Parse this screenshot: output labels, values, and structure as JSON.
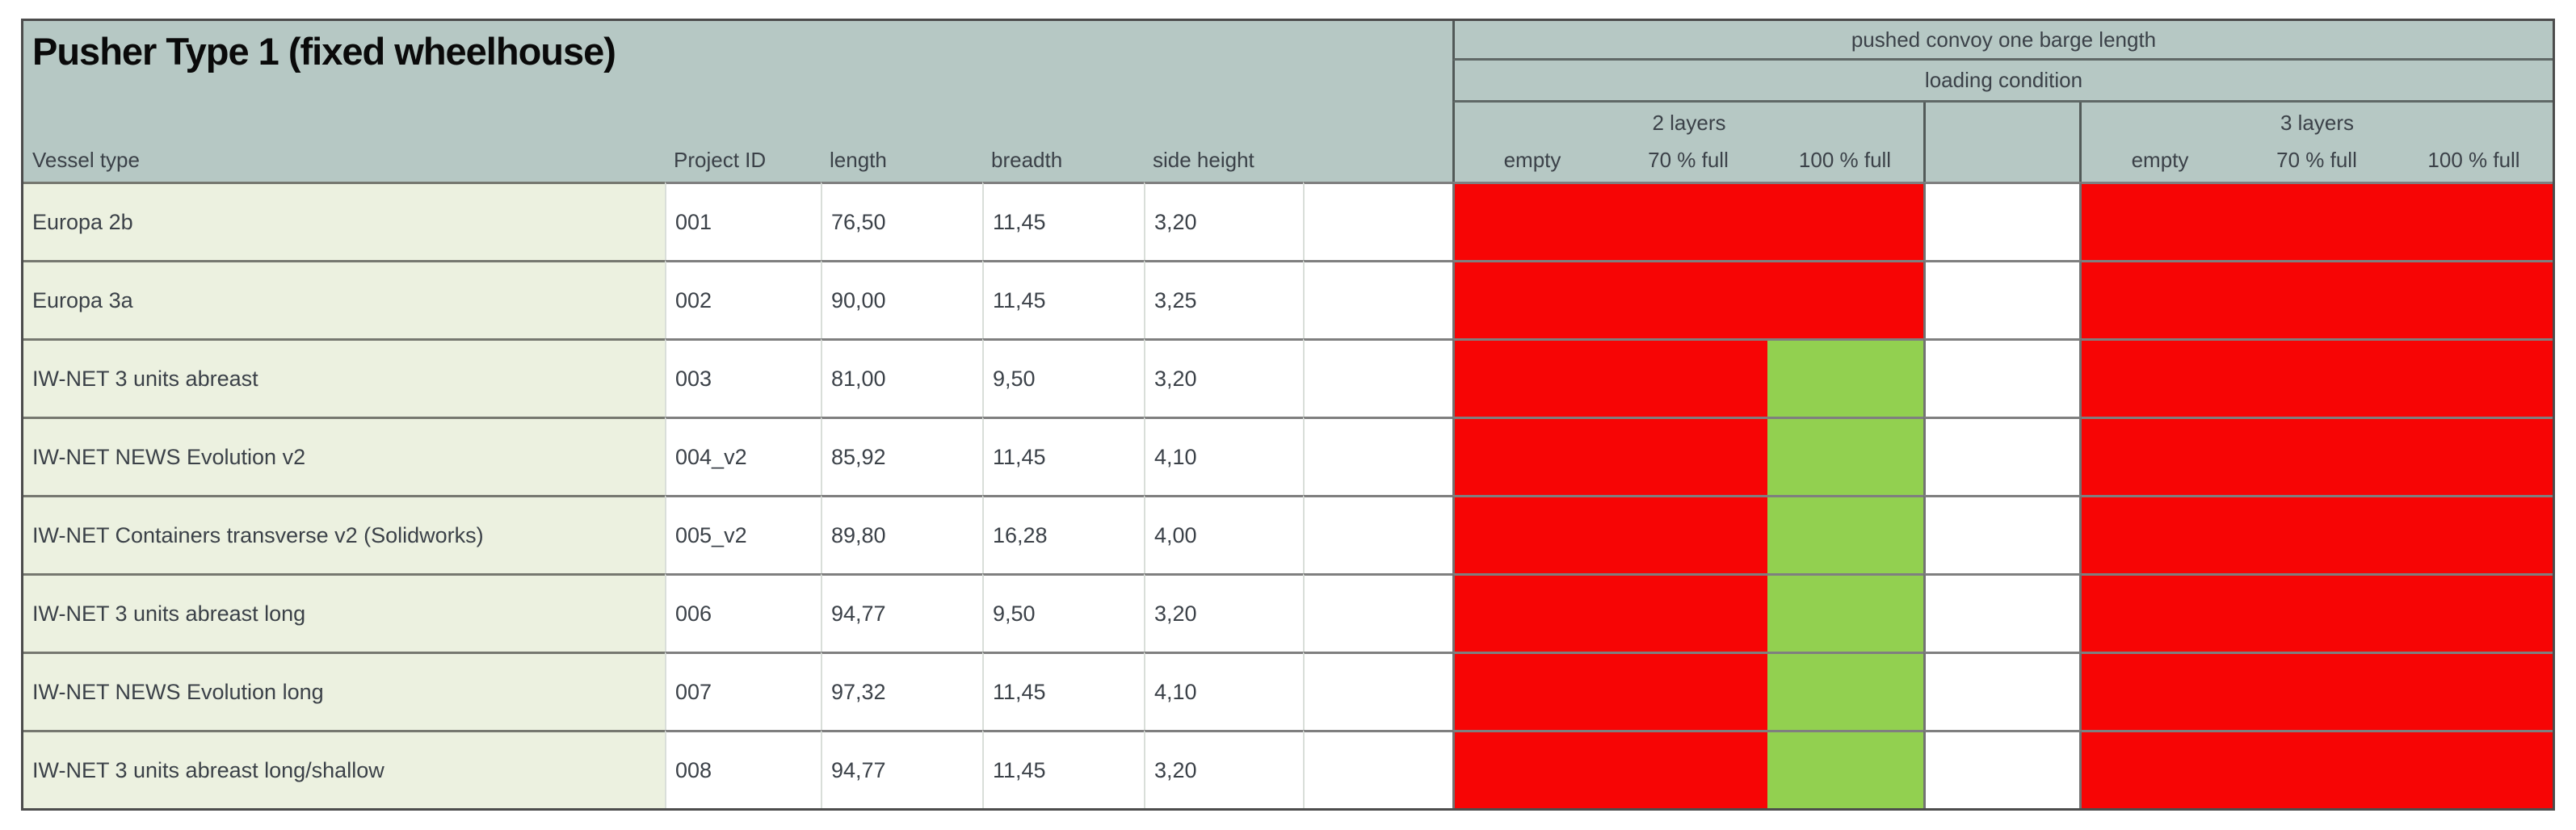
{
  "sheet": {
    "title": "Pusher Type 1 (fixed wheelhouse)",
    "columns": {
      "vessel_type": "Vessel type",
      "project_id": "Project ID",
      "length": "length",
      "breadth": "breadth",
      "side_height": "side height"
    },
    "convoy_header": "pushed convoy one barge length",
    "loading_header": "loading condition",
    "groups": [
      {
        "label": "2 layers",
        "cols": [
          "empty",
          "70 % full",
          "100 % full"
        ]
      },
      {
        "label": "3 layers",
        "cols": [
          "empty",
          "70 % full",
          "100 % full"
        ]
      }
    ],
    "rows": [
      {
        "vessel": "Europa 2b",
        "project_id": "001",
        "text_flag": true,
        "length": "76,50",
        "breadth": "11,45",
        "side_height": "3,20",
        "layers2": [
          "red",
          "red",
          "red"
        ],
        "layers3": [
          "red",
          "red",
          "red"
        ]
      },
      {
        "vessel": "Europa 3a",
        "project_id": "002",
        "text_flag": true,
        "length": "90,00",
        "breadth": "11,45",
        "side_height": "3,25",
        "layers2": [
          "red",
          "red",
          "red"
        ],
        "layers3": [
          "red",
          "red",
          "red"
        ]
      },
      {
        "vessel": "IW-NET 3 units abreast",
        "project_id": "003",
        "text_flag": true,
        "length": "81,00",
        "breadth": "9,50",
        "side_height": "3,20",
        "layers2": [
          "red",
          "red",
          "green"
        ],
        "layers3": [
          "red",
          "red",
          "red"
        ]
      },
      {
        "vessel": "IW-NET NEWS Evolution v2",
        "project_id": "004_v2",
        "text_flag": false,
        "length": "85,92",
        "breadth": "11,45",
        "side_height": "4,10",
        "layers2": [
          "red",
          "red",
          "green"
        ],
        "layers3": [
          "red",
          "red",
          "red"
        ]
      },
      {
        "vessel": "IW-NET Containers transverse v2 (Solidworks)",
        "project_id": "005_v2",
        "text_flag": false,
        "length": "89,80",
        "breadth": "16,28",
        "side_height": "4,00",
        "layers2": [
          "red",
          "red",
          "green"
        ],
        "layers3": [
          "red",
          "red",
          "red"
        ]
      },
      {
        "vessel": "IW-NET 3 units abreast long",
        "project_id": "006",
        "text_flag": true,
        "length": "94,77",
        "breadth": "9,50",
        "side_height": "3,20",
        "layers2": [
          "red",
          "red",
          "green"
        ],
        "layers3": [
          "red",
          "red",
          "red"
        ]
      },
      {
        "vessel": "IW-NET NEWS Evolution long",
        "project_id": "007",
        "text_flag": true,
        "length": "97,32",
        "breadth": "11,45",
        "side_height": "4,10",
        "layers2": [
          "red",
          "red",
          "green"
        ],
        "layers3": [
          "red",
          "red",
          "red"
        ]
      },
      {
        "vessel": "IW-NET 3 units abreast long/shallow",
        "project_id": "008",
        "text_flag": true,
        "length": "94,77",
        "breadth": "11,45",
        "side_height": "3,20",
        "layers2": [
          "red",
          "red",
          "green"
        ],
        "layers3": [
          "red",
          "red",
          "red"
        ]
      }
    ]
  },
  "colors": {
    "red": "#f70505",
    "green": "#92d050",
    "header_bg": "#b6c8c4",
    "vessel_bg": "#ecf1e0",
    "triangle_green": "#1e8a1e"
  }
}
